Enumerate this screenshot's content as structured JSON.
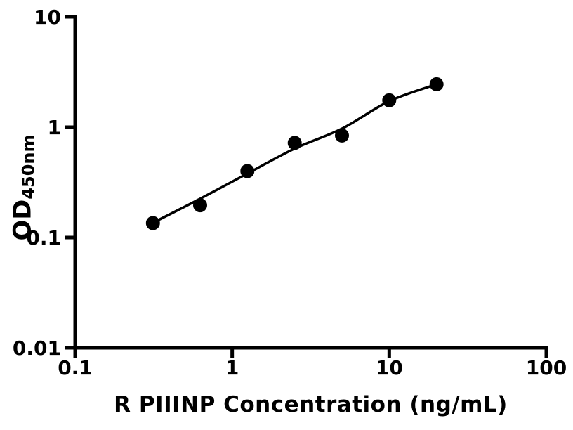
{
  "figure": {
    "background": "#ffffff",
    "foreground": "#000000"
  },
  "chart_data": {
    "type": "scatter",
    "title": "",
    "xlabel": "R PIIINP Concentration (ng/mL)",
    "ylabel": {
      "main": "OD",
      "sub": "450nm"
    },
    "x_scale": "log",
    "y_scale": "log",
    "xlim": [
      0.1,
      100
    ],
    "ylim": [
      0.01,
      10
    ],
    "grid": false,
    "legend": "none",
    "x_ticks": [
      {
        "v": 0.1,
        "label": "0.1"
      },
      {
        "v": 1,
        "label": "1"
      },
      {
        "v": 10,
        "label": "10"
      },
      {
        "v": 100,
        "label": "100"
      }
    ],
    "y_ticks": [
      {
        "v": 0.01,
        "label": "0.01"
      },
      {
        "v": 0.1,
        "label": "0.1"
      },
      {
        "v": 1,
        "label": "1"
      },
      {
        "v": 10,
        "label": "10"
      }
    ],
    "series": [
      {
        "name": "fit-curve",
        "type": "line",
        "color": "#000000",
        "stroke_width": 3.5,
        "points": [
          [
            0.313,
            0.136
          ],
          [
            0.63,
            0.226
          ],
          [
            1.25,
            0.38
          ],
          [
            2.5,
            0.64
          ],
          [
            5,
            0.97
          ],
          [
            10,
            1.72
          ],
          [
            20,
            2.45
          ]
        ]
      },
      {
        "name": "standard-points",
        "type": "scatter",
        "marker": "circle",
        "marker_radius": 10,
        "color": "#000000",
        "points": [
          [
            0.313,
            0.135
          ],
          [
            0.625,
            0.196
          ],
          [
            1.25,
            0.4
          ],
          [
            2.5,
            0.72
          ],
          [
            5,
            0.84
          ],
          [
            10,
            1.75
          ],
          [
            20,
            2.45
          ]
        ]
      }
    ]
  }
}
